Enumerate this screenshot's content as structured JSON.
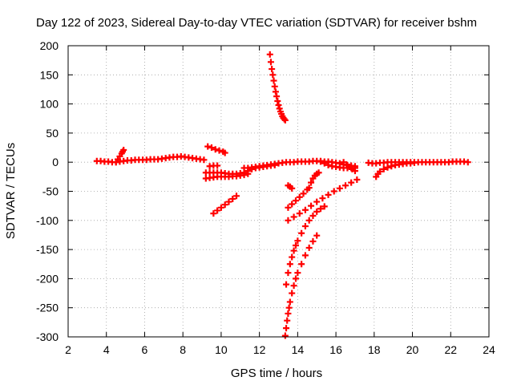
{
  "chart_data": {
    "type": "scatter",
    "title": "Day 122 of 2023, Sidereal Day-to-day VTEC variation (SDTVAR) for receiver bshm",
    "xlabel": "GPS time / hours",
    "ylabel": "SDTVAR / TECUs",
    "xlim": [
      2,
      24
    ],
    "ylim": [
      -300,
      200
    ],
    "xticks": [
      2,
      4,
      6,
      8,
      10,
      12,
      14,
      16,
      18,
      20,
      22,
      24
    ],
    "yticks": [
      -300,
      -250,
      -200,
      -150,
      -100,
      -50,
      0,
      50,
      100,
      150,
      200
    ],
    "grid": true,
    "marker": "+",
    "color": "#ff0000",
    "series": [
      {
        "name": "SDTVAR",
        "points": [
          [
            3.5,
            2
          ],
          [
            3.7,
            2
          ],
          [
            3.9,
            1
          ],
          [
            4.1,
            1
          ],
          [
            4.3,
            0
          ],
          [
            4.5,
            0
          ],
          [
            4.7,
            1
          ],
          [
            4.9,
            2
          ],
          [
            5.1,
            3
          ],
          [
            5.3,
            3
          ],
          [
            5.5,
            4
          ],
          [
            5.7,
            4
          ],
          [
            5.9,
            4
          ],
          [
            6.1,
            4
          ],
          [
            6.3,
            5
          ],
          [
            6.5,
            5
          ],
          [
            6.7,
            5
          ],
          [
            6.9,
            6
          ],
          [
            7.1,
            7
          ],
          [
            7.3,
            8
          ],
          [
            7.5,
            9
          ],
          [
            7.7,
            9
          ],
          [
            7.9,
            10
          ],
          [
            8.1,
            9
          ],
          [
            8.3,
            8
          ],
          [
            8.5,
            7
          ],
          [
            8.7,
            6
          ],
          [
            8.9,
            5
          ],
          [
            9.1,
            4
          ],
          [
            4.5,
            0
          ],
          [
            4.6,
            5
          ],
          [
            4.7,
            10
          ],
          [
            4.8,
            15
          ],
          [
            4.85,
            18
          ],
          [
            4.9,
            21
          ],
          [
            9.3,
            27
          ],
          [
            9.5,
            25
          ],
          [
            9.7,
            22
          ],
          [
            9.9,
            20
          ],
          [
            10.1,
            18
          ],
          [
            10.2,
            16
          ],
          [
            9.4,
            -7
          ],
          [
            9.6,
            -6
          ],
          [
            9.8,
            -6
          ],
          [
            9.2,
            -18
          ],
          [
            9.4,
            -18
          ],
          [
            9.6,
            -18
          ],
          [
            9.8,
            -18
          ],
          [
            10.0,
            -18
          ],
          [
            10.2,
            -19
          ],
          [
            10.4,
            -20
          ],
          [
            10.6,
            -20
          ],
          [
            10.8,
            -20
          ],
          [
            11.0,
            -19
          ],
          [
            11.2,
            -18
          ],
          [
            11.4,
            -15
          ],
          [
            11.6,
            -12
          ],
          [
            11.8,
            -10
          ],
          [
            12.0,
            -9
          ],
          [
            12.2,
            -8
          ],
          [
            12.4,
            -7
          ],
          [
            12.6,
            -6
          ],
          [
            12.8,
            -5
          ],
          [
            9.2,
            -28
          ],
          [
            9.4,
            -27
          ],
          [
            9.6,
            -26
          ],
          [
            9.8,
            -25
          ],
          [
            10.0,
            -25
          ],
          [
            10.2,
            -25
          ],
          [
            10.4,
            -25
          ],
          [
            10.6,
            -24
          ],
          [
            10.8,
            -24
          ],
          [
            11.0,
            -23
          ],
          [
            11.2,
            -22
          ],
          [
            11.4,
            -20
          ],
          [
            11.2,
            -10
          ],
          [
            11.4,
            -10
          ],
          [
            11.6,
            -9
          ],
          [
            11.8,
            -8
          ],
          [
            12.0,
            -7
          ],
          [
            12.2,
            -6
          ],
          [
            12.4,
            -5
          ],
          [
            12.6,
            -4
          ],
          [
            12.8,
            -3
          ],
          [
            13.0,
            -2
          ],
          [
            13.2,
            -1
          ],
          [
            13.4,
            0
          ],
          [
            13.6,
            0
          ],
          [
            13.8,
            0
          ],
          [
            14.0,
            1
          ],
          [
            14.2,
            1
          ],
          [
            14.4,
            1
          ],
          [
            14.6,
            1
          ],
          [
            14.8,
            2
          ],
          [
            15.0,
            2
          ],
          [
            15.2,
            2
          ],
          [
            15.4,
            1
          ],
          [
            15.6,
            1
          ],
          [
            15.8,
            0
          ],
          [
            16.0,
            -1
          ],
          [
            16.2,
            -2
          ],
          [
            16.4,
            -4
          ],
          [
            16.6,
            -5
          ],
          [
            16.8,
            -6
          ],
          [
            17.0,
            -7
          ],
          [
            15.2,
            1
          ],
          [
            15.4,
            -2
          ],
          [
            15.6,
            -5
          ],
          [
            15.8,
            -7
          ],
          [
            16.0,
            -8
          ],
          [
            16.2,
            -9
          ],
          [
            16.4,
            -10
          ],
          [
            16.6,
            -10
          ],
          [
            16.8,
            -10
          ],
          [
            17.0,
            -10
          ],
          [
            16.4,
            0
          ],
          [
            16.55,
            -4
          ],
          [
            16.7,
            -8
          ],
          [
            16.85,
            -12
          ],
          [
            17.0,
            -15
          ],
          [
            17.7,
            -1
          ],
          [
            17.9,
            -2
          ],
          [
            18.1,
            -2
          ],
          [
            18.3,
            -1
          ],
          [
            18.5,
            -1
          ],
          [
            18.7,
            0
          ],
          [
            18.9,
            0
          ],
          [
            19.1,
            0
          ],
          [
            19.3,
            0
          ],
          [
            19.5,
            0
          ],
          [
            19.7,
            0
          ],
          [
            19.9,
            0
          ],
          [
            20.1,
            0
          ],
          [
            20.3,
            0
          ],
          [
            20.5,
            0
          ],
          [
            20.7,
            0
          ],
          [
            20.9,
            0
          ],
          [
            21.1,
            0
          ],
          [
            21.3,
            0
          ],
          [
            21.5,
            0
          ],
          [
            21.7,
            0
          ],
          [
            21.9,
            0
          ],
          [
            22.1,
            1
          ],
          [
            22.3,
            1
          ],
          [
            22.5,
            1
          ],
          [
            22.7,
            1
          ],
          [
            22.9,
            0
          ],
          [
            18.1,
            -25
          ],
          [
            18.2,
            -20
          ],
          [
            18.3,
            -16
          ],
          [
            18.5,
            -12
          ],
          [
            18.7,
            -9
          ],
          [
            18.9,
            -7
          ],
          [
            19.1,
            -5
          ],
          [
            19.3,
            -4
          ],
          [
            19.5,
            -3
          ],
          [
            19.7,
            -2
          ],
          [
            19.9,
            -2
          ],
          [
            20.1,
            -1
          ],
          [
            12.55,
            185
          ],
          [
            12.6,
            172
          ],
          [
            12.65,
            160
          ],
          [
            12.7,
            150
          ],
          [
            12.75,
            140
          ],
          [
            12.8,
            130
          ],
          [
            12.85,
            121
          ],
          [
            12.9,
            113
          ],
          [
            12.95,
            105
          ],
          [
            13.0,
            98
          ],
          [
            13.05,
            92
          ],
          [
            13.1,
            87
          ],
          [
            13.15,
            83
          ],
          [
            13.2,
            79
          ],
          [
            13.25,
            76
          ],
          [
            13.3,
            74
          ],
          [
            13.35,
            72
          ],
          [
            13.5,
            -40
          ],
          [
            13.6,
            -42
          ],
          [
            13.7,
            -45
          ],
          [
            13.5,
            -78
          ],
          [
            13.7,
            -72
          ],
          [
            13.9,
            -66
          ],
          [
            14.1,
            -60
          ],
          [
            14.3,
            -54
          ],
          [
            14.5,
            -47
          ],
          [
            14.6,
            -44
          ],
          [
            9.6,
            -88
          ],
          [
            9.8,
            -83
          ],
          [
            10.0,
            -78
          ],
          [
            10.2,
            -73
          ],
          [
            10.4,
            -68
          ],
          [
            10.6,
            -63
          ],
          [
            10.8,
            -58
          ],
          [
            13.5,
            -100
          ],
          [
            13.8,
            -94
          ],
          [
            14.1,
            -88
          ],
          [
            14.4,
            -82
          ],
          [
            14.7,
            -75
          ],
          [
            15.0,
            -68
          ],
          [
            15.3,
            -62
          ],
          [
            15.6,
            -56
          ],
          [
            15.9,
            -50
          ],
          [
            16.2,
            -45
          ],
          [
            16.5,
            -40
          ],
          [
            16.8,
            -35
          ],
          [
            17.1,
            -30
          ],
          [
            14.7,
            -35
          ],
          [
            14.8,
            -28
          ],
          [
            14.9,
            -23
          ],
          [
            15.0,
            -20
          ],
          [
            15.1,
            -18
          ],
          [
            13.4,
            -210
          ],
          [
            13.5,
            -190
          ],
          [
            13.6,
            -175
          ],
          [
            13.7,
            -163
          ],
          [
            13.8,
            -152
          ],
          [
            13.9,
            -143
          ],
          [
            14.0,
            -135
          ],
          [
            14.2,
            -122
          ],
          [
            14.4,
            -110
          ],
          [
            14.6,
            -100
          ],
          [
            14.8,
            -92
          ],
          [
            15.0,
            -85
          ],
          [
            15.2,
            -80
          ],
          [
            15.4,
            -76
          ],
          [
            13.35,
            -298
          ],
          [
            13.4,
            -285
          ],
          [
            13.45,
            -272
          ],
          [
            13.5,
            -260
          ],
          [
            13.55,
            -250
          ],
          [
            13.6,
            -240
          ],
          [
            13.7,
            -225
          ],
          [
            13.8,
            -212
          ],
          [
            13.9,
            -200
          ],
          [
            14.0,
            -190
          ],
          [
            14.2,
            -175
          ],
          [
            14.4,
            -160
          ],
          [
            14.6,
            -147
          ],
          [
            14.8,
            -136
          ],
          [
            15.0,
            -126
          ]
        ]
      }
    ]
  }
}
